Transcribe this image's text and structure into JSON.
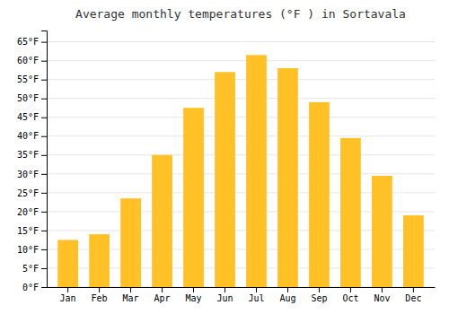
{
  "chart_data": {
    "type": "bar",
    "title": "Average monthly temperatures (°F ) in Sortavala",
    "categories": [
      "Jan",
      "Feb",
      "Mar",
      "Apr",
      "May",
      "Jun",
      "Jul",
      "Aug",
      "Sep",
      "Oct",
      "Nov",
      "Dec"
    ],
    "values": [
      12.5,
      14.0,
      23.5,
      35.0,
      47.5,
      57.0,
      61.5,
      58.0,
      49.0,
      39.5,
      29.5,
      19.0
    ],
    "color": "#FFC125",
    "ylim": [
      0,
      68
    ],
    "yticks": [
      {
        "value": 0,
        "label": "0°F"
      },
      {
        "value": 5,
        "label": "5°F"
      },
      {
        "value": 10,
        "label": "10°F"
      },
      {
        "value": 15,
        "label": "15°F"
      },
      {
        "value": 20,
        "label": "20°F"
      },
      {
        "value": 25,
        "label": "25°F"
      },
      {
        "value": 30,
        "label": "30°F"
      },
      {
        "value": 35,
        "label": "35°F"
      },
      {
        "value": 40,
        "label": "40°F"
      },
      {
        "value": 45,
        "label": "45°F"
      },
      {
        "value": 50,
        "label": "50°F"
      },
      {
        "value": 55,
        "label": "55°F"
      },
      {
        "value": 60,
        "label": "60°F"
      },
      {
        "value": 65,
        "label": "65°F"
      }
    ],
    "grid": true
  }
}
